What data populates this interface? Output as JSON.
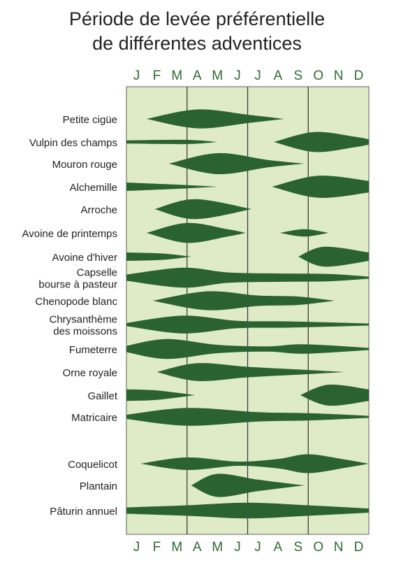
{
  "title_line1": "Période de levée préférentielle",
  "title_line2": "de différentes adventices",
  "colors": {
    "panel_fill": "#dfebc6",
    "panel_border": "#777777",
    "divider": "#333333",
    "shape_fill": "#2b6231",
    "month_label": "#2e6a33",
    "row_label": "#222222"
  },
  "chart_data": {
    "type": "violin",
    "months": [
      "J",
      "F",
      "M",
      "A",
      "M",
      "J",
      "J",
      "A",
      "S",
      "O",
      "N",
      "D"
    ],
    "series": [
      {
        "name": [
          "Petite cigüe"
        ],
        "segments": [
          [
            {
              "m": 1,
              "w": 0
            },
            {
              "m": 3.5,
              "w": 0.9
            },
            {
              "m": 6,
              "w": 0.4
            },
            {
              "m": 7.8,
              "w": 0
            }
          ]
        ]
      },
      {
        "name": [
          "Vulpin des champs"
        ],
        "segments": [
          [
            {
              "m": 0,
              "w": 0.15
            },
            {
              "m": 3,
              "w": 0.2
            },
            {
              "m": 4.5,
              "w": 0
            }
          ],
          [
            {
              "m": 7.3,
              "w": 0
            },
            {
              "m": 9.3,
              "w": 0.95
            },
            {
              "m": 11.3,
              "w": 0.5
            },
            {
              "m": 12,
              "w": 0.25
            }
          ]
        ]
      },
      {
        "name": [
          "Mouron rouge"
        ],
        "segments": [
          [
            {
              "m": 2.1,
              "w": 0
            },
            {
              "m": 4.5,
              "w": 1
            },
            {
              "m": 7,
              "w": 0.35
            },
            {
              "m": 8.8,
              "w": 0
            }
          ]
        ]
      },
      {
        "name": [
          "Alchemille"
        ],
        "segments": [
          [
            {
              "m": 0,
              "w": 0.4
            },
            {
              "m": 2.5,
              "w": 0.2
            },
            {
              "m": 4.5,
              "w": 0
            }
          ],
          [
            {
              "m": 7.2,
              "w": 0
            },
            {
              "m": 9.5,
              "w": 1.05
            },
            {
              "m": 12,
              "w": 0.55
            }
          ]
        ]
      },
      {
        "name": [
          "Arroche"
        ],
        "segments": [
          [
            {
              "m": 1.4,
              "w": 0
            },
            {
              "m": 3.4,
              "w": 0.95
            },
            {
              "m": 6.2,
              "w": 0
            }
          ]
        ]
      },
      {
        "name": [
          "Avoine de printemps"
        ],
        "segments": [
          [
            {
              "m": 1,
              "w": 0
            },
            {
              "m": 3,
              "w": 0.95
            },
            {
              "m": 5,
              "w": 0.35
            },
            {
              "m": 5.9,
              "w": 0
            }
          ],
          [
            {
              "m": 7.6,
              "w": 0
            },
            {
              "m": 8.8,
              "w": 0.35
            },
            {
              "m": 10,
              "w": 0
            }
          ]
        ]
      },
      {
        "name": [
          "Avoine d'hiver"
        ],
        "segments": [
          [
            {
              "m": 0,
              "w": 0.4
            },
            {
              "m": 1.8,
              "w": 0.3
            },
            {
              "m": 3.2,
              "w": 0
            }
          ],
          [
            {
              "m": 8.5,
              "w": 0
            },
            {
              "m": 9.8,
              "w": 0.95
            },
            {
              "m": 12,
              "w": 0.4
            }
          ]
        ]
      },
      {
        "name": [
          "Capselle",
          "bourse à pasteur"
        ],
        "segments": [
          [
            {
              "m": 0,
              "w": 0.3
            },
            {
              "m": 2.8,
              "w": 0.95
            },
            {
              "m": 5,
              "w": 0.5
            },
            {
              "m": 7.5,
              "w": 0.4
            },
            {
              "m": 10,
              "w": 0.35
            },
            {
              "m": 12,
              "w": 0.1
            }
          ]
        ]
      },
      {
        "name": [
          "Chenopode blanc"
        ],
        "segments": [
          [
            {
              "m": 1.3,
              "w": 0
            },
            {
              "m": 4,
              "w": 0.9
            },
            {
              "m": 6.5,
              "w": 0.5
            },
            {
              "m": 8.5,
              "w": 0.4
            },
            {
              "m": 10.3,
              "w": 0
            }
          ]
        ]
      },
      {
        "name": [
          "Chrysanthème",
          "des moissons"
        ],
        "segments": [
          [
            {
              "m": 0,
              "w": 0.15
            },
            {
              "m": 2.8,
              "w": 0.85
            },
            {
              "m": 5.5,
              "w": 0.35
            },
            {
              "m": 8,
              "w": 0.3
            },
            {
              "m": 12,
              "w": 0.1
            }
          ]
        ]
      },
      {
        "name": [
          "Fumeterre"
        ],
        "segments": [
          [
            {
              "m": 0,
              "w": 0.3
            },
            {
              "m": 2,
              "w": 0.95
            },
            {
              "m": 4.5,
              "w": 0.4
            },
            {
              "m": 7,
              "w": 0.25
            },
            {
              "m": 8.8,
              "w": 0.45
            },
            {
              "m": 12,
              "w": 0.1
            }
          ]
        ]
      },
      {
        "name": [
          "Orne royale"
        ],
        "segments": [
          [
            {
              "m": 1.5,
              "w": 0
            },
            {
              "m": 3.5,
              "w": 0.85
            },
            {
              "m": 6,
              "w": 0.5
            },
            {
              "m": 8.5,
              "w": 0.25
            },
            {
              "m": 10.8,
              "w": 0
            }
          ]
        ]
      },
      {
        "name": [
          "Gaillet"
        ],
        "segments": [
          [
            {
              "m": 0,
              "w": 0.55
            },
            {
              "m": 1.5,
              "w": 0.45
            },
            {
              "m": 3.4,
              "w": 0
            }
          ],
          [
            {
              "m": 8.6,
              "w": 0
            },
            {
              "m": 10,
              "w": 1.0
            },
            {
              "m": 12,
              "w": 0.55
            }
          ]
        ]
      },
      {
        "name": [
          "Matricaire"
        ],
        "segments": [
          [
            {
              "m": 0,
              "w": 0.2
            },
            {
              "m": 3,
              "w": 0.85
            },
            {
              "m": 6.5,
              "w": 0.45
            },
            {
              "m": 9,
              "w": 0.35
            },
            {
              "m": 12,
              "w": 0.1
            }
          ]
        ]
      },
      {
        "name": [
          "Coquelicot"
        ],
        "segments": [
          [
            {
              "m": 0.7,
              "w": 0
            },
            {
              "m": 3,
              "w": 0.6
            },
            {
              "m": 5.5,
              "w": 0.2
            },
            {
              "m": 7.5,
              "w": 0.45
            },
            {
              "m": 9,
              "w": 0.9
            },
            {
              "m": 10.8,
              "w": 0.4
            },
            {
              "m": 12,
              "w": 0
            }
          ]
        ]
      },
      {
        "name": [
          "Plantain"
        ],
        "segments": [
          [
            {
              "m": 3.2,
              "w": 0
            },
            {
              "m": 4.5,
              "w": 1.1
            },
            {
              "m": 6.5,
              "w": 0.55
            },
            {
              "m": 8.8,
              "w": 0
            }
          ]
        ]
      },
      {
        "name": [
          "Pâturin annuel"
        ],
        "segments": [
          [
            {
              "m": 0,
              "w": 0.3
            },
            {
              "m": 3,
              "w": 0.5
            },
            {
              "m": 6,
              "w": 0.75
            },
            {
              "m": 9,
              "w": 0.5
            },
            {
              "m": 12,
              "w": 0.2
            }
          ]
        ]
      }
    ]
  }
}
